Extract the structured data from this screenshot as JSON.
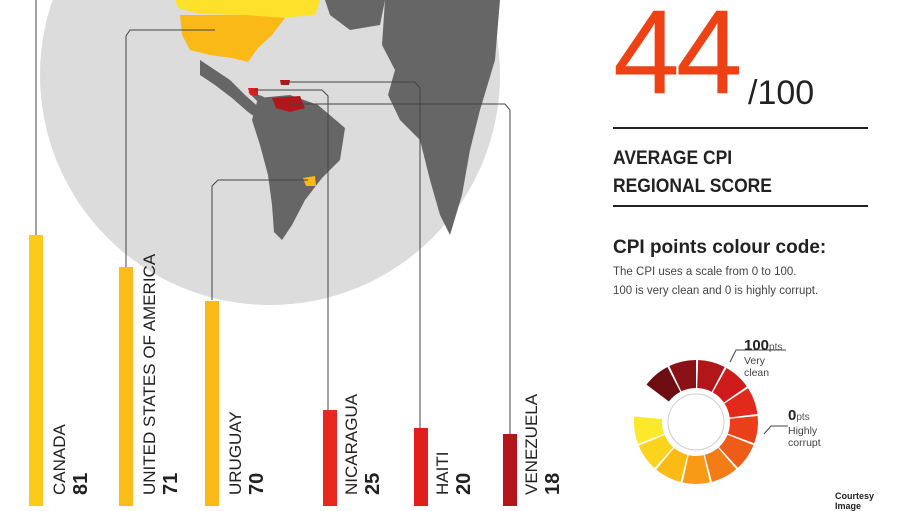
{
  "headline": {
    "score": "44",
    "max": "/100"
  },
  "average": {
    "line1": "AVERAGE CPI",
    "line2": "REGIONAL SCORE"
  },
  "colour_code": {
    "title": "CPI points colour code:",
    "desc1": "The CPI uses a scale from 0 to 100.",
    "desc2": "100 is very clean and 0 is highly corrupt."
  },
  "legend": {
    "top_pts": "100",
    "top_unit": "pts",
    "top_label1": "Very",
    "top_label2": "clean",
    "bottom_pts": "0",
    "bottom_unit": "pts",
    "bottom_label1": "Highly",
    "bottom_label2": "corrupt",
    "segment_colors": [
      "#fde92b",
      "#fcd31d",
      "#fbba14",
      "#f99a14",
      "#f37c17",
      "#ee5c1a",
      "#e9401b",
      "#e22a1c",
      "#cf1b1b",
      "#b0161a",
      "#8a1116",
      "#6d0d12"
    ]
  },
  "countries": [
    {
      "name": "CANADA",
      "score": 81,
      "color": "#fdca1a"
    },
    {
      "name": "UNITED STATES OF AMERICA",
      "score": 71,
      "color": "#fbbd18"
    },
    {
      "name": "URUGUAY",
      "score": 70,
      "color": "#fbb918"
    },
    {
      "name": "NICARAGUA",
      "score": 25,
      "color": "#e8271f"
    },
    {
      "name": "HAITI",
      "score": 20,
      "color": "#e21d1d"
    },
    {
      "name": "VENEZUELA",
      "score": 18,
      "color": "#b3151a"
    }
  ],
  "credit": "Courtesy Image"
}
